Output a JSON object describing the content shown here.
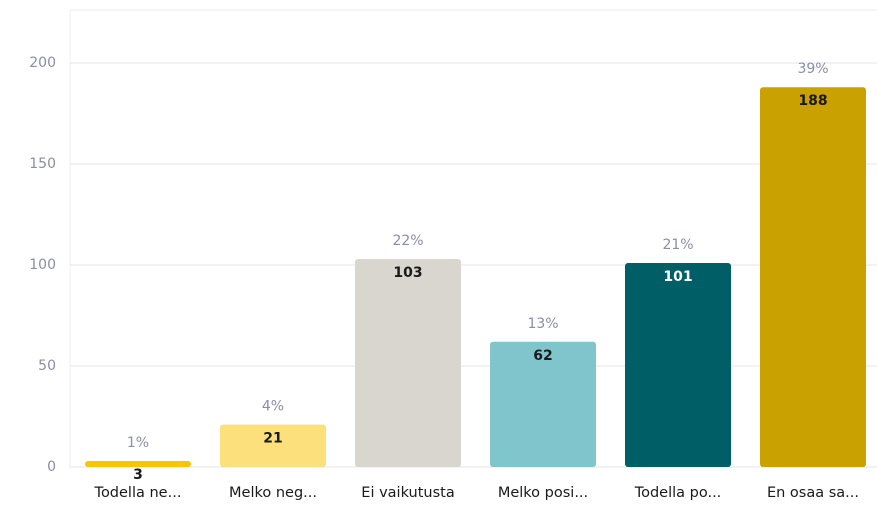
{
  "chart_data": {
    "type": "bar",
    "categories": [
      "Todella ne...",
      "Melko neg...",
      "Ei vaikutusta",
      "Melko posi...",
      "Todella po...",
      "En osaa sa..."
    ],
    "values": [
      3,
      21,
      103,
      62,
      101,
      188
    ],
    "share_labels": [
      "1%",
      "4%",
      "22%",
      "13%",
      "21%",
      "39%"
    ],
    "colors": [
      "#f7c600",
      "#fbe07c",
      "#d8d6ce",
      "#80c4cc",
      "#005f66",
      "#c9a100"
    ],
    "ylim": [
      0,
      200
    ],
    "yticks": [
      0,
      50,
      100,
      150,
      200
    ],
    "grid": true
  }
}
